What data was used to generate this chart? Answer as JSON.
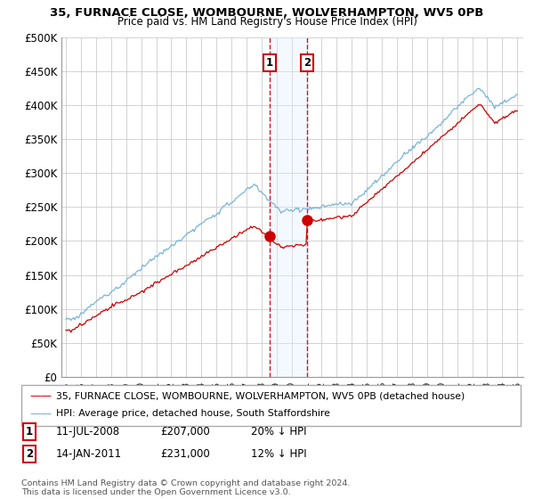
{
  "title_line1": "35, FURNACE CLOSE, WOMBOURNE, WOLVERHAMPTON, WV5 0PB",
  "title_line2": "Price paid vs. HM Land Registry's House Price Index (HPI)",
  "xlim_start": 1994.7,
  "xlim_end": 2025.4,
  "ylim_min": 0,
  "ylim_max": 500000,
  "yticks": [
    0,
    50000,
    100000,
    150000,
    200000,
    250000,
    300000,
    350000,
    400000,
    450000,
    500000
  ],
  "ytick_labels": [
    "£0",
    "£50K",
    "£100K",
    "£150K",
    "£200K",
    "£250K",
    "£300K",
    "£350K",
    "£400K",
    "£450K",
    "£500K"
  ],
  "xtick_years": [
    1995,
    1996,
    1997,
    1998,
    1999,
    2000,
    2001,
    2002,
    2003,
    2004,
    2005,
    2006,
    2007,
    2008,
    2009,
    2010,
    2011,
    2012,
    2013,
    2014,
    2015,
    2016,
    2017,
    2018,
    2019,
    2020,
    2021,
    2022,
    2023,
    2024,
    2025
  ],
  "sale1_x": 2008.53,
  "sale1_y": 207000,
  "sale1_label": "1",
  "sale1_date": "11-JUL-2008",
  "sale1_price": "£207,000",
  "sale1_hpi": "20% ↓ HPI",
  "sale2_x": 2011.04,
  "sale2_y": 231000,
  "sale2_label": "2",
  "sale2_date": "14-JAN-2011",
  "sale2_price": "£231,000",
  "sale2_hpi": "12% ↓ HPI",
  "hpi_color": "#6baed6",
  "sale_color": "#cc0000",
  "shade_color": "#ddeeff",
  "legend_label_sale": "35, FURNACE CLOSE, WOMBOURNE, WOLVERHAMPTON, WV5 0PB (detached house)",
  "legend_label_hpi": "HPI: Average price, detached house, South Staffordshire",
  "copyright_text": "Contains HM Land Registry data © Crown copyright and database right 2024.\nThis data is licensed under the Open Government Licence v3.0.",
  "background_color": "#ffffff",
  "grid_color": "#cccccc"
}
